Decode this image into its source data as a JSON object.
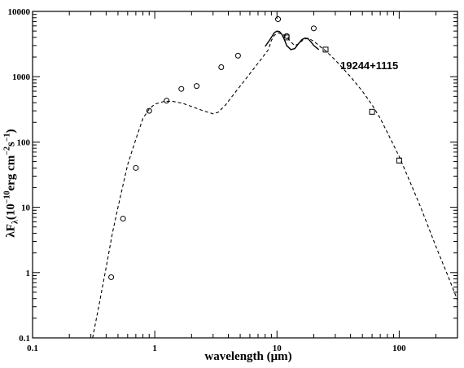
{
  "chart_data": {
    "type": "scatter",
    "xlabel": "wavelength (μm)",
    "ylabel": "λF_λ(10^-10 erg cm^-2 s^-1)",
    "ylabel_parts": {
      "base": "λF",
      "sub": "λ",
      "open": "(10",
      "exp1": "−10",
      "mid": "erg cm",
      "exp2": "−2",
      "s": "s",
      "exp3": "−1",
      "close": ")"
    },
    "annotation": "19244+1115",
    "xscale": "log",
    "yscale": "log",
    "xlim": [
      0.1,
      300
    ],
    "ylim": [
      0.1,
      10000
    ],
    "x_ticks": [
      0.1,
      1,
      10,
      100
    ],
    "x_tick_labels": [
      "0.1",
      "1",
      "10",
      "100"
    ],
    "y_ticks": [
      0.1,
      1,
      10,
      100,
      1000,
      10000
    ],
    "y_tick_labels": [
      "0.1",
      "1",
      "10",
      "100",
      "1000",
      "10000"
    ],
    "series": [
      {
        "style": "circles",
        "points": [
          [
            0.44,
            0.85
          ],
          [
            0.55,
            6.7
          ],
          [
            0.7,
            40
          ],
          [
            0.9,
            300
          ],
          [
            1.25,
            430
          ],
          [
            1.65,
            650
          ],
          [
            2.2,
            720
          ],
          [
            3.5,
            1400
          ],
          [
            4.8,
            2100
          ],
          [
            10.2,
            7600
          ],
          [
            12,
            4200
          ],
          [
            20,
            5500
          ]
        ]
      },
      {
        "style": "squares",
        "points": [
          [
            12,
            4000
          ],
          [
            25,
            2600
          ],
          [
            60,
            290
          ],
          [
            100,
            52
          ]
        ]
      },
      {
        "style": "dashed",
        "points": [
          [
            0.31,
            0.1
          ],
          [
            0.35,
            0.32
          ],
          [
            0.4,
            1.2
          ],
          [
            0.45,
            4
          ],
          [
            0.5,
            10
          ],
          [
            0.55,
            22
          ],
          [
            0.6,
            45
          ],
          [
            0.7,
            110
          ],
          [
            0.8,
            230
          ],
          [
            0.9,
            320
          ],
          [
            1.0,
            380
          ],
          [
            1.2,
            420
          ],
          [
            1.4,
            420
          ],
          [
            1.7,
            390
          ],
          [
            2.0,
            350
          ],
          [
            2.5,
            300
          ],
          [
            3.0,
            270
          ],
          [
            3.3,
            285
          ],
          [
            3.8,
            370
          ],
          [
            4.5,
            560
          ],
          [
            5.5,
            900
          ],
          [
            6.5,
            1350
          ],
          [
            7.5,
            1900
          ],
          [
            8.5,
            2600
          ],
          [
            9.0,
            3600
          ],
          [
            9.5,
            4300
          ],
          [
            10.2,
            4700
          ],
          [
            11.0,
            4500
          ],
          [
            12.0,
            4100
          ],
          [
            13.0,
            3400
          ],
          [
            14.0,
            3000
          ],
          [
            15.0,
            3200
          ],
          [
            16.5,
            3700
          ],
          [
            18.0,
            3900
          ],
          [
            20.0,
            3500
          ],
          [
            23.0,
            2800
          ],
          [
            25.0,
            2500
          ],
          [
            30.0,
            1800
          ],
          [
            40.0,
            1000
          ],
          [
            50.0,
            600
          ],
          [
            60.0,
            370
          ],
          [
            70.0,
            230
          ],
          [
            80.0,
            140
          ],
          [
            100.0,
            60
          ],
          [
            120.0,
            27
          ],
          [
            150.0,
            10
          ],
          [
            200.0,
            2.5
          ],
          [
            250.0,
            0.9
          ],
          [
            300.0,
            0.38
          ]
        ]
      },
      {
        "style": "solid",
        "points": [
          [
            8.0,
            2900
          ],
          [
            8.5,
            3400
          ],
          [
            9.0,
            4000
          ],
          [
            9.5,
            4700
          ],
          [
            10.0,
            5000
          ],
          [
            10.5,
            4900
          ],
          [
            11.0,
            4400
          ],
          [
            11.5,
            3700
          ],
          [
            12.0,
            3000
          ],
          [
            13.0,
            2600
          ],
          [
            14.0,
            2700
          ],
          [
            15.0,
            3200
          ],
          [
            16.0,
            3700
          ],
          [
            17.0,
            3900
          ],
          [
            18.0,
            3800
          ],
          [
            19.0,
            3400
          ],
          [
            20.0,
            3000
          ],
          [
            22.0,
            2600
          ]
        ]
      }
    ]
  }
}
